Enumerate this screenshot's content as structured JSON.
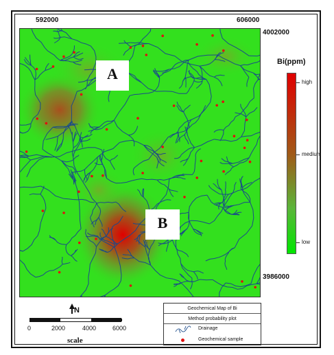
{
  "map": {
    "coords": {
      "x_left": "592000",
      "x_right": "606000",
      "y_top": "4002000",
      "y_bottom": "3986000"
    },
    "zones": [
      {
        "label": "A"
      },
      {
        "label": "B"
      }
    ],
    "colors": {
      "background": "#33e01e",
      "drainage": "#1a4a8a",
      "sample": "#e01010",
      "high": "#e00000",
      "medium": "#a05a18",
      "low": "#00e600"
    }
  },
  "legend": {
    "title": "Bi(ppm)",
    "high": "high",
    "medium": "medium",
    "low": "low"
  },
  "north": {
    "label": "N"
  },
  "scale": {
    "ticks": [
      "0",
      "2000",
      "4000",
      "6000"
    ],
    "label": "scale"
  },
  "info_table": {
    "title": "Geochemical Map of Bi",
    "method": "Method probability plot",
    "drainage": "Drainage",
    "sample": "Geochemical sample"
  }
}
